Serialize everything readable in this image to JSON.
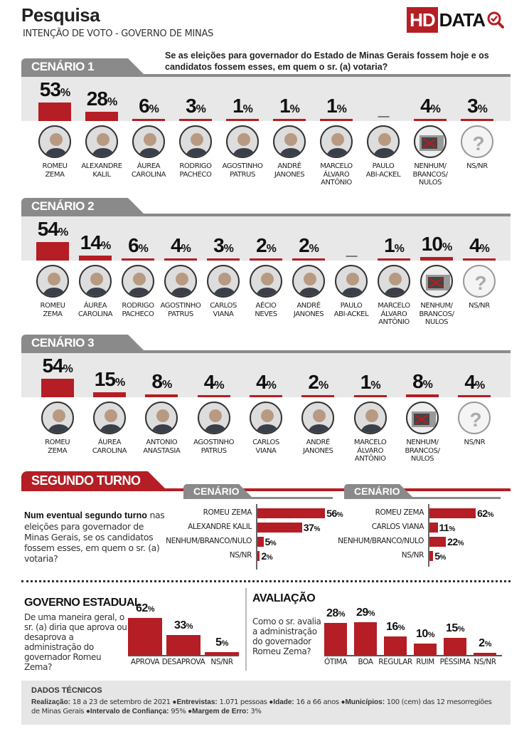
{
  "header": {
    "title": "Pesquisa",
    "subtitle": "INTENÇÃO DE VOTO - GOVERNO DE MINAS",
    "logo_box": "HD",
    "logo_text": "DATA"
  },
  "question": "Se as eleições para governador do Estado de Minas Gerais fossem hoje e os candidatos fossem esses, em quem o sr. (a) votaria?",
  "chart_data": [
    {
      "type": "bar",
      "title": "CENÁRIO 1",
      "categories": [
        "ROMEU ZEMA",
        "ALEXANDRE KALIL",
        "ÁUREA CAROLINA",
        "RODRIGO PACHECO",
        "AGOSTINHO PATRUS",
        "ANDRÉ JANONES",
        "MARCELO ÁLVARO ANTÔNIO",
        "PAULO ABI-ACKEL",
        "NENHUM/ BRANCOS/ NULOS",
        "NS/NR"
      ],
      "values": [
        53,
        28,
        6,
        3,
        1,
        1,
        1,
        null,
        4,
        3
      ],
      "labels": [
        "53",
        "28",
        "6",
        "3",
        "1",
        "1",
        "1",
        "_",
        "4",
        "3"
      ],
      "unit": "%"
    },
    {
      "type": "bar",
      "title": "CENÁRIO 2",
      "categories": [
        "ROMEU ZEMA",
        "ÁUREA CAROLINA",
        "RODRIGO PACHECO",
        "AGOSTINHO PATRUS",
        "CARLOS VIANA",
        "AÉCIO NEVES",
        "ANDRÉ JANONES",
        "PAULO ABI-ACKEL",
        "MARCELO ÁLVARO ANTÔNIO",
        "NENHUM/ BRANCOS/ NULOS",
        "NS/NR"
      ],
      "values": [
        54,
        14,
        6,
        4,
        3,
        2,
        2,
        null,
        1,
        10,
        4
      ],
      "labels": [
        "54",
        "14",
        "6",
        "4",
        "3",
        "2",
        "2",
        "_",
        "1",
        "10",
        "4"
      ],
      "unit": "%"
    },
    {
      "type": "bar",
      "title": "CENÁRIO 3",
      "categories": [
        "ROMEU ZEMA",
        "ÁUREA CAROLINA",
        "ANTONIO ANASTASIA",
        "AGOSTINHO PATRUS",
        "CARLOS VIANA",
        "ANDRÉ JANONES",
        "MARCELO ÁLVARO ANTÔNIO",
        "NENHUM/ BRANCOS/ NULOS",
        "NS/NR"
      ],
      "values": [
        54,
        15,
        8,
        4,
        4,
        2,
        1,
        8,
        4
      ],
      "labels": [
        "54",
        "15",
        "8",
        "4",
        "4",
        "2",
        "1",
        "8",
        "4"
      ],
      "unit": "%"
    },
    {
      "type": "bar",
      "orientation": "horizontal",
      "title": "CENÁRIO 1",
      "categories": [
        "ROMEU ZEMA",
        "ALEXANDRE KALIL",
        "NENHUM/BRANCO/NULO",
        "NS/NR"
      ],
      "values": [
        56,
        37,
        5,
        2
      ],
      "unit": "%"
    },
    {
      "type": "bar",
      "orientation": "horizontal",
      "title": "CENÁRIO 2",
      "categories": [
        "ROMEU ZEMA",
        "CARLOS VIANA",
        "NENHUM/BRANCO/NULO",
        "NS/NR"
      ],
      "values": [
        62,
        11,
        22,
        5
      ],
      "unit": "%"
    },
    {
      "type": "bar",
      "title": "GOVERNO ESTADUAL",
      "categories": [
        "APROVA",
        "DESAPROVA",
        "NS/NR"
      ],
      "values": [
        62,
        33,
        5
      ],
      "unit": "%"
    },
    {
      "type": "bar",
      "title": "AVALIAÇÃO",
      "categories": [
        "ÓTIMA",
        "BOA",
        "REGULAR",
        "RUIM",
        "PÉSSIMA",
        "NS/NR"
      ],
      "values": [
        28,
        29,
        16,
        10,
        15,
        2
      ],
      "unit": "%"
    }
  ],
  "second_round": {
    "tab": "SEGUNDO TURNO",
    "question_bold": "Num eventual segundo turno",
    "question_rest": " nas eleições para governador de Minas Gerais, se os candidatos fossem esses, em quem o sr. (a) votaria?"
  },
  "gov": {
    "question": "De uma maneira geral, o sr. (a) diria que aprova ou desaprova a administração do governador Romeu Zema?"
  },
  "aval": {
    "question": "Como o sr. avalia a administração do governador Romeu Zema?"
  },
  "tech": {
    "title": "DADOS TÉCNICOS",
    "k1": "Realização:",
    "v1": " 18 a 23 de setembro de 2021 ",
    "k2": "●Entrevistas:",
    "v2": " 1.071 pessoas ",
    "k3": "●Idade:",
    "v3": " 16 a 66 anos ",
    "k4": "●Municípios:",
    "v4": " 100 (cem) das 12 mesorregiões de Minas Gerais ",
    "k5": "●Intervalo de Confiança:",
    "v5": " 95% ",
    "k6": "●Margem de Erro:",
    "v6": " 3%"
  },
  "colors": {
    "accent": "#b41e24",
    "panel": "#e8e8e8",
    "tab": "#8a8a8a"
  }
}
